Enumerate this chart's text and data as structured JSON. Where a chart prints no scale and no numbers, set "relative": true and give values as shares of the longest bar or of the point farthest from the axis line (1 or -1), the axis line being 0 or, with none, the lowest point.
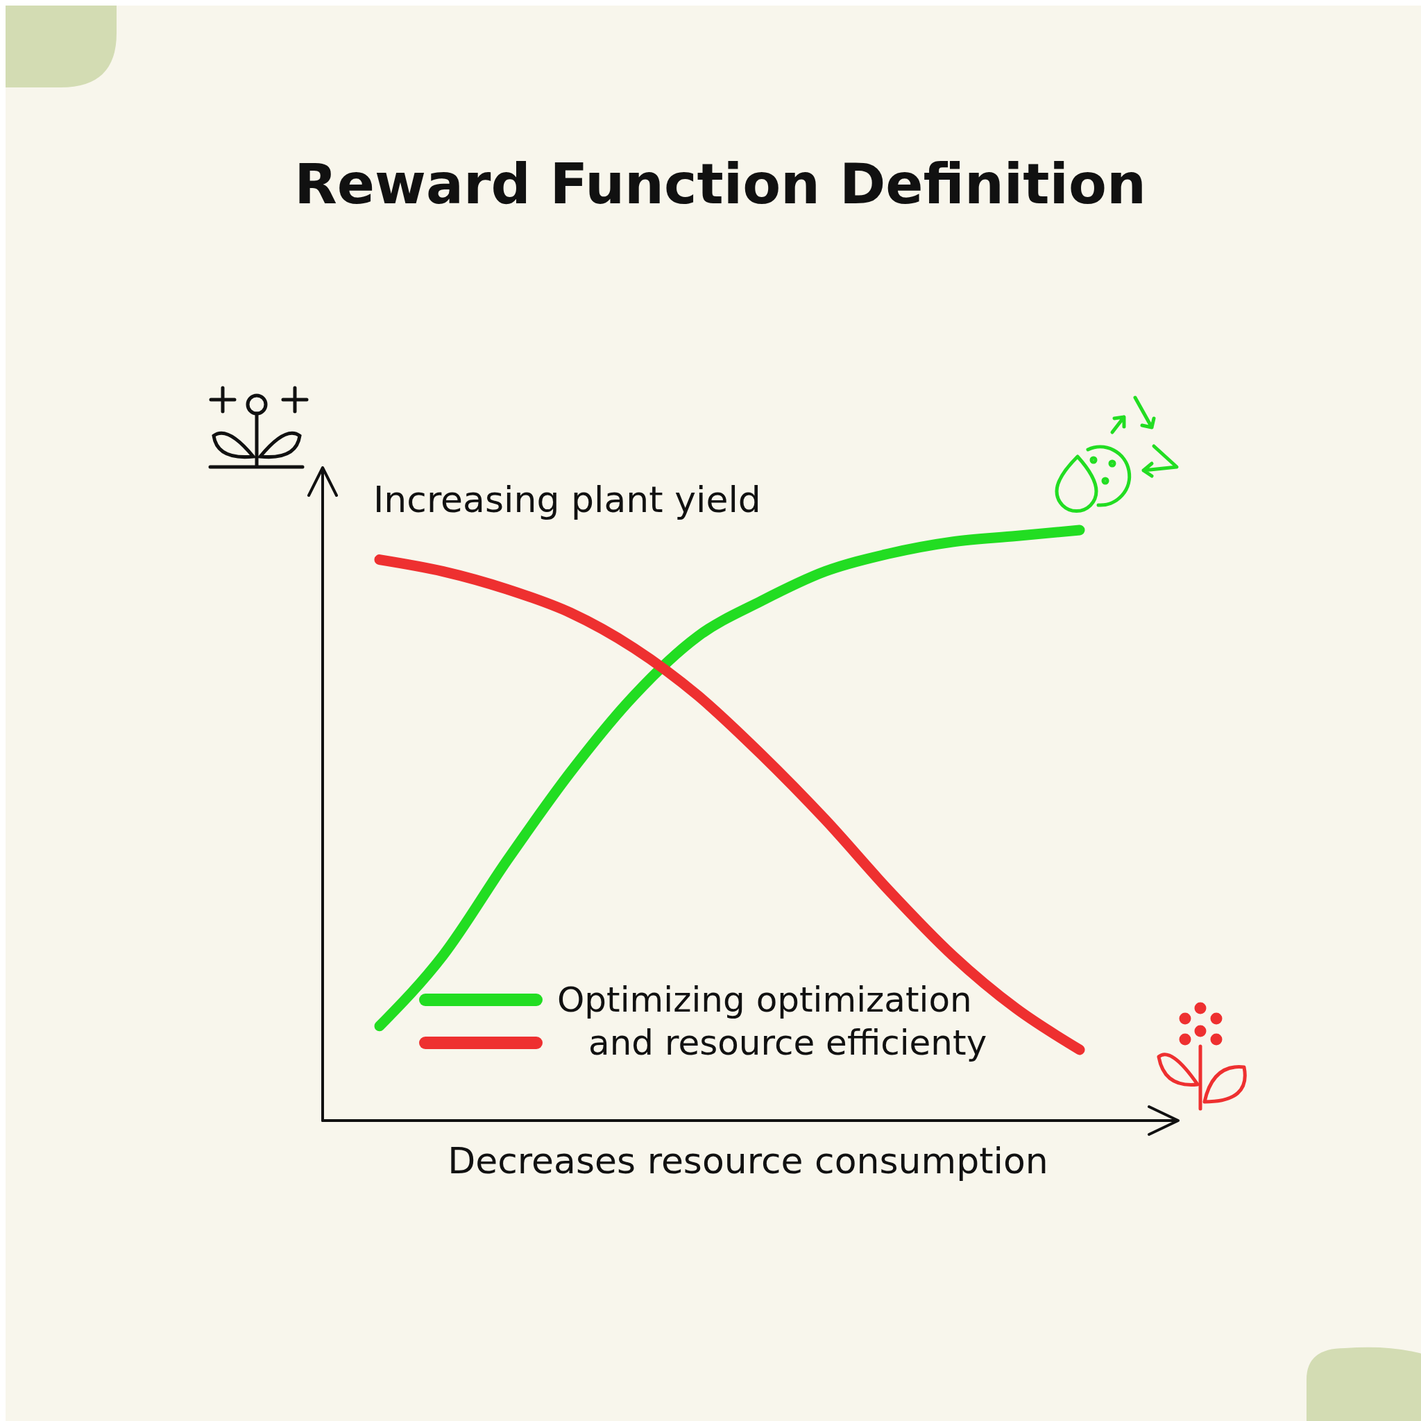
{
  "chart_data": {
    "type": "line",
    "title": "Reward Function Definition",
    "xlabel": "Decreases resource consumption",
    "ylabel": "Increasing plant yield",
    "relative": true,
    "legend": "bottom",
    "line_style": "solid",
    "categories": [
      null,
      null,
      null,
      null,
      null,
      null,
      null,
      null,
      null,
      null,
      null,
      null
    ],
    "series": [
      {
        "name": "Optimizing optimization",
        "color": "#22dd22",
        "values": [
          0.16,
          0.28,
          0.44,
          0.59,
          0.72,
          0.82,
          0.88,
          0.93,
          0.96,
          0.98,
          0.99,
          1
        ]
      },
      {
        "name": "and resource efficienty",
        "color": "#ee3030",
        "values": [
          0.95,
          0.93,
          0.9,
          0.86,
          0.8,
          0.72,
          0.62,
          0.51,
          0.39,
          0.28,
          0.19,
          0.12
        ]
      }
    ]
  }
}
